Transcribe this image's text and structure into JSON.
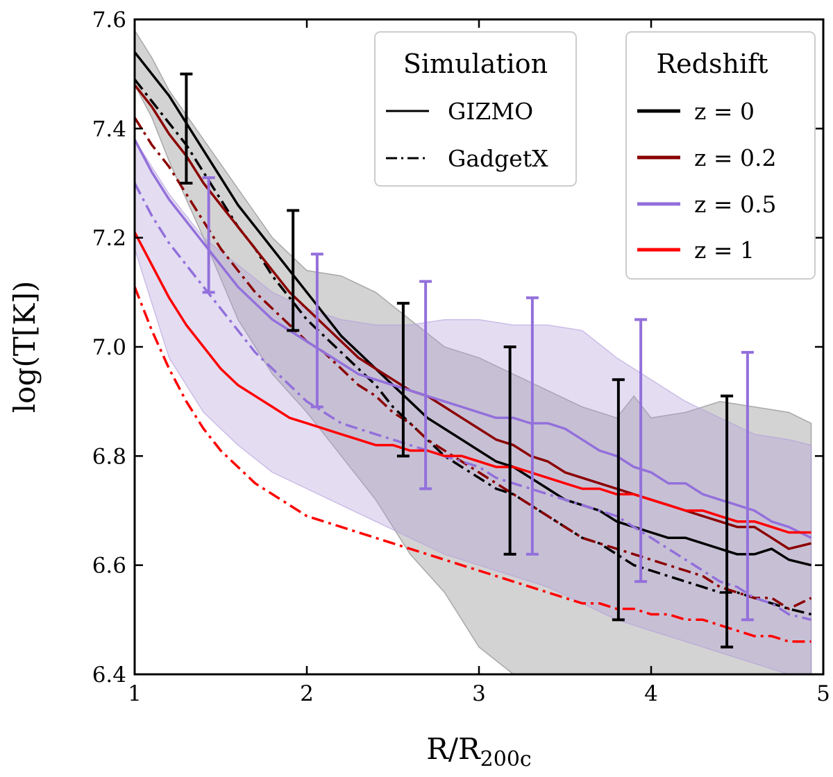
{
  "chart_data": {
    "type": "line",
    "title": "",
    "xlabel": "R/R",
    "xlabel_sub": "200c",
    "ylabel": "log(T[K])",
    "xlim": [
      1,
      5
    ],
    "ylim": [
      6.4,
      7.6
    ],
    "x_ticks": [
      1,
      2,
      3,
      4,
      5
    ],
    "x_tick_labels": [
      "1",
      "2",
      "3",
      "4",
      "5"
    ],
    "y_ticks": [
      6.4,
      6.6,
      6.8,
      7.0,
      7.2,
      7.4,
      7.6
    ],
    "y_tick_labels": [
      "6.4",
      "6.6",
      "6.8",
      "7.0",
      "7.2",
      "7.4",
      "7.6"
    ],
    "colors": {
      "z0": "#000000",
      "z02": "#8b0000",
      "z05": "#9370db",
      "z1": "#ff0000",
      "band_gray": "#808080",
      "band_purple": "#b39ddb"
    },
    "legend_simulation": {
      "title": "Simulation",
      "entries": [
        {
          "label": "GIZMO",
          "style": "solid"
        },
        {
          "label": "GadgetX",
          "style": "dashdot"
        }
      ]
    },
    "legend_redshift": {
      "title": "Redshift",
      "entries": [
        {
          "label": "z = 0",
          "color": "#000000"
        },
        {
          "label": "z = 0.2",
          "color": "#8b0000"
        },
        {
          "label": "z = 0.5",
          "color": "#9370db"
        },
        {
          "label": "z = 1",
          "color": "#ff0000"
        }
      ]
    },
    "bands": [
      {
        "name": "z0-scatter",
        "color": "#808080",
        "x": [
          1.0,
          1.1,
          1.2,
          1.4,
          1.6,
          1.8,
          2.0,
          2.2,
          2.4,
          2.6,
          2.8,
          3.0,
          3.2,
          3.4,
          3.6,
          3.8,
          3.9,
          4.0,
          4.2,
          4.4,
          4.6,
          4.8,
          4.93
        ],
        "upper": [
          7.58,
          7.53,
          7.47,
          7.38,
          7.29,
          7.2,
          7.14,
          7.13,
          7.1,
          7.05,
          7.0,
          6.98,
          6.95,
          6.92,
          6.89,
          6.87,
          6.91,
          6.87,
          6.88,
          6.9,
          6.89,
          6.88,
          6.86
        ],
        "lower": [
          7.48,
          7.42,
          7.34,
          7.2,
          7.05,
          6.95,
          6.88,
          6.8,
          6.72,
          6.62,
          6.55,
          6.45,
          6.4,
          6.4,
          6.4,
          6.4,
          6.4,
          6.4,
          6.4,
          6.4,
          6.4,
          6.4,
          6.4
        ]
      },
      {
        "name": "z05-scatter",
        "color": "#b39ddb",
        "x": [
          1.0,
          1.1,
          1.2,
          1.4,
          1.6,
          1.8,
          2.0,
          2.2,
          2.4,
          2.6,
          2.8,
          3.0,
          3.2,
          3.4,
          3.6,
          3.8,
          4.0,
          4.2,
          4.4,
          4.6,
          4.8,
          4.93
        ],
        "upper": [
          7.38,
          7.33,
          7.28,
          7.2,
          7.15,
          7.1,
          7.07,
          7.05,
          7.04,
          7.04,
          7.05,
          7.05,
          7.04,
          7.04,
          7.03,
          6.98,
          6.94,
          6.9,
          6.87,
          6.84,
          6.83,
          6.82
        ],
        "lower": [
          7.18,
          7.08,
          6.98,
          6.88,
          6.82,
          6.77,
          6.74,
          6.71,
          6.68,
          6.65,
          6.62,
          6.6,
          6.58,
          6.56,
          6.53,
          6.5,
          6.48,
          6.46,
          6.44,
          6.42,
          6.4,
          6.4
        ]
      }
    ],
    "series": [
      {
        "name": "GIZMO z=0",
        "color": "#000000",
        "style": "solid",
        "x": [
          1.0,
          1.1,
          1.2,
          1.3,
          1.4,
          1.5,
          1.6,
          1.7,
          1.8,
          1.9,
          2.0,
          2.1,
          2.2,
          2.3,
          2.4,
          2.5,
          2.6,
          2.7,
          2.8,
          2.9,
          3.0,
          3.1,
          3.2,
          3.3,
          3.4,
          3.5,
          3.6,
          3.7,
          3.8,
          3.9,
          4.0,
          4.1,
          4.2,
          4.3,
          4.4,
          4.5,
          4.6,
          4.7,
          4.8,
          4.93
        ],
        "y": [
          7.54,
          7.5,
          7.46,
          7.41,
          7.36,
          7.31,
          7.26,
          7.22,
          7.18,
          7.14,
          7.1,
          7.06,
          7.02,
          6.99,
          6.96,
          6.93,
          6.9,
          6.87,
          6.85,
          6.83,
          6.81,
          6.79,
          6.78,
          6.76,
          6.74,
          6.72,
          6.71,
          6.7,
          6.68,
          6.67,
          6.66,
          6.65,
          6.65,
          6.64,
          6.63,
          6.62,
          6.62,
          6.63,
          6.61,
          6.6
        ]
      },
      {
        "name": "GadgetX z=0",
        "color": "#000000",
        "style": "dashdot",
        "x": [
          1.0,
          1.1,
          1.2,
          1.3,
          1.4,
          1.5,
          1.6,
          1.7,
          1.8,
          1.9,
          2.0,
          2.1,
          2.2,
          2.3,
          2.4,
          2.5,
          2.6,
          2.7,
          2.8,
          2.9,
          3.0,
          3.1,
          3.2,
          3.3,
          3.4,
          3.5,
          3.6,
          3.7,
          3.8,
          3.9,
          4.0,
          4.1,
          4.2,
          4.3,
          4.4,
          4.5,
          4.6,
          4.7,
          4.8,
          4.93
        ],
        "y": [
          7.49,
          7.45,
          7.41,
          7.37,
          7.32,
          7.27,
          7.22,
          7.18,
          7.13,
          7.09,
          7.05,
          7.02,
          6.99,
          6.96,
          6.93,
          6.89,
          6.86,
          6.83,
          6.8,
          6.78,
          6.76,
          6.74,
          6.73,
          6.71,
          6.69,
          6.67,
          6.65,
          6.64,
          6.62,
          6.6,
          6.59,
          6.58,
          6.57,
          6.56,
          6.55,
          6.55,
          6.54,
          6.53,
          6.52,
          6.51
        ]
      },
      {
        "name": "GIZMO z=0.2",
        "color": "#8b0000",
        "style": "solid",
        "x": [
          1.0,
          1.1,
          1.2,
          1.3,
          1.4,
          1.5,
          1.6,
          1.7,
          1.8,
          1.9,
          2.0,
          2.1,
          2.2,
          2.3,
          2.4,
          2.5,
          2.6,
          2.7,
          2.8,
          2.9,
          3.0,
          3.1,
          3.2,
          3.3,
          3.4,
          3.5,
          3.6,
          3.7,
          3.8,
          3.9,
          4.0,
          4.1,
          4.2,
          4.3,
          4.4,
          4.5,
          4.6,
          4.7,
          4.8,
          4.93
        ],
        "y": [
          7.48,
          7.44,
          7.39,
          7.35,
          7.3,
          7.26,
          7.22,
          7.18,
          7.14,
          7.1,
          7.07,
          7.04,
          7.01,
          6.98,
          6.96,
          6.94,
          6.92,
          6.91,
          6.89,
          6.87,
          6.85,
          6.83,
          6.82,
          6.8,
          6.79,
          6.77,
          6.76,
          6.75,
          6.74,
          6.73,
          6.72,
          6.71,
          6.7,
          6.69,
          6.68,
          6.67,
          6.67,
          6.65,
          6.63,
          6.64
        ]
      },
      {
        "name": "GadgetX z=0.2",
        "color": "#8b0000",
        "style": "dashdot",
        "x": [
          1.0,
          1.1,
          1.2,
          1.3,
          1.4,
          1.5,
          1.6,
          1.7,
          1.8,
          1.9,
          2.0,
          2.1,
          2.2,
          2.3,
          2.4,
          2.5,
          2.6,
          2.7,
          2.8,
          2.9,
          3.0,
          3.1,
          3.2,
          3.3,
          3.4,
          3.5,
          3.6,
          3.7,
          3.8,
          3.9,
          4.0,
          4.1,
          4.2,
          4.3,
          4.4,
          4.5,
          4.6,
          4.7,
          4.8,
          4.93
        ],
        "y": [
          7.42,
          7.37,
          7.33,
          7.28,
          7.23,
          7.18,
          7.14,
          7.1,
          7.07,
          7.04,
          7.01,
          6.99,
          6.96,
          6.93,
          6.91,
          6.88,
          6.86,
          6.83,
          6.81,
          6.79,
          6.77,
          6.75,
          6.73,
          6.71,
          6.69,
          6.67,
          6.65,
          6.64,
          6.63,
          6.62,
          6.61,
          6.6,
          6.59,
          6.58,
          6.56,
          6.55,
          6.54,
          6.54,
          6.52,
          6.54
        ]
      },
      {
        "name": "GIZMO z=0.5",
        "color": "#9370db",
        "style": "solid",
        "x": [
          1.0,
          1.1,
          1.2,
          1.3,
          1.4,
          1.5,
          1.6,
          1.7,
          1.8,
          1.9,
          2.0,
          2.1,
          2.2,
          2.3,
          2.4,
          2.5,
          2.6,
          2.7,
          2.8,
          2.9,
          3.0,
          3.1,
          3.2,
          3.3,
          3.4,
          3.5,
          3.6,
          3.7,
          3.8,
          3.9,
          4.0,
          4.1,
          4.2,
          4.3,
          4.4,
          4.5,
          4.6,
          4.7,
          4.8,
          4.93
        ],
        "y": [
          7.38,
          7.32,
          7.27,
          7.23,
          7.19,
          7.15,
          7.11,
          7.08,
          7.05,
          7.03,
          7.01,
          6.99,
          6.97,
          6.95,
          6.94,
          6.93,
          6.92,
          6.91,
          6.9,
          6.89,
          6.88,
          6.87,
          6.87,
          6.86,
          6.86,
          6.85,
          6.83,
          6.81,
          6.8,
          6.78,
          6.77,
          6.75,
          6.75,
          6.73,
          6.72,
          6.71,
          6.7,
          6.68,
          6.67,
          6.65
        ]
      },
      {
        "name": "GadgetX z=0.5",
        "color": "#9370db",
        "style": "dashdot",
        "x": [
          1.0,
          1.1,
          1.2,
          1.3,
          1.4,
          1.5,
          1.6,
          1.7,
          1.8,
          1.9,
          2.0,
          2.1,
          2.2,
          2.3,
          2.4,
          2.5,
          2.6,
          2.7,
          2.8,
          2.9,
          3.0,
          3.1,
          3.2,
          3.3,
          3.4,
          3.5,
          3.6,
          3.7,
          3.8,
          3.9,
          4.0,
          4.1,
          4.2,
          4.3,
          4.4,
          4.5,
          4.6,
          4.7,
          4.8,
          4.93
        ],
        "y": [
          7.3,
          7.24,
          7.19,
          7.15,
          7.11,
          7.07,
          7.03,
          6.99,
          6.96,
          6.93,
          6.9,
          6.88,
          6.86,
          6.85,
          6.84,
          6.83,
          6.82,
          6.81,
          6.8,
          6.79,
          6.78,
          6.76,
          6.75,
          6.74,
          6.73,
          6.72,
          6.71,
          6.7,
          6.69,
          6.67,
          6.65,
          6.63,
          6.61,
          6.59,
          6.57,
          6.56,
          6.54,
          6.53,
          6.51,
          6.5
        ]
      },
      {
        "name": "GIZMO z=1",
        "color": "#ff0000",
        "style": "solid",
        "x": [
          1.0,
          1.1,
          1.2,
          1.3,
          1.4,
          1.5,
          1.6,
          1.7,
          1.8,
          1.9,
          2.0,
          2.1,
          2.2,
          2.3,
          2.4,
          2.5,
          2.6,
          2.7,
          2.8,
          2.9,
          3.0,
          3.1,
          3.2,
          3.3,
          3.4,
          3.5,
          3.6,
          3.7,
          3.8,
          3.9,
          4.0,
          4.1,
          4.2,
          4.3,
          4.4,
          4.5,
          4.6,
          4.7,
          4.8,
          4.93
        ],
        "y": [
          7.21,
          7.15,
          7.09,
          7.04,
          7.0,
          6.96,
          6.93,
          6.91,
          6.89,
          6.87,
          6.86,
          6.85,
          6.84,
          6.83,
          6.82,
          6.82,
          6.81,
          6.81,
          6.8,
          6.8,
          6.79,
          6.78,
          6.78,
          6.77,
          6.76,
          6.75,
          6.74,
          6.74,
          6.73,
          6.73,
          6.72,
          6.71,
          6.7,
          6.7,
          6.69,
          6.68,
          6.68,
          6.67,
          6.66,
          6.66
        ]
      },
      {
        "name": "GadgetX z=1",
        "color": "#ff0000",
        "style": "dashdot",
        "x": [
          1.0,
          1.1,
          1.2,
          1.3,
          1.4,
          1.5,
          1.6,
          1.7,
          1.8,
          1.9,
          2.0,
          2.1,
          2.2,
          2.3,
          2.4,
          2.5,
          2.6,
          2.7,
          2.8,
          2.9,
          3.0,
          3.1,
          3.2,
          3.3,
          3.4,
          3.5,
          3.6,
          3.7,
          3.8,
          3.9,
          4.0,
          4.1,
          4.2,
          4.3,
          4.4,
          4.5,
          4.6,
          4.7,
          4.8,
          4.93
        ],
        "y": [
          7.11,
          7.03,
          6.96,
          6.9,
          6.85,
          6.81,
          6.78,
          6.75,
          6.73,
          6.71,
          6.69,
          6.68,
          6.67,
          6.66,
          6.65,
          6.64,
          6.63,
          6.62,
          6.61,
          6.6,
          6.59,
          6.58,
          6.57,
          6.56,
          6.55,
          6.54,
          6.53,
          6.53,
          6.52,
          6.52,
          6.51,
          6.51,
          6.5,
          6.5,
          6.49,
          6.48,
          6.47,
          6.47,
          6.46,
          6.46
        ]
      }
    ],
    "error_bars": [
      {
        "x": 1.3,
        "y_low": 7.3,
        "y_high": 7.5,
        "color": "#000000"
      },
      {
        "x": 1.92,
        "y_low": 7.03,
        "y_high": 7.25,
        "color": "#000000"
      },
      {
        "x": 2.56,
        "y_low": 6.8,
        "y_high": 7.08,
        "color": "#000000"
      },
      {
        "x": 3.18,
        "y_low": 6.62,
        "y_high": 7.0,
        "color": "#000000"
      },
      {
        "x": 3.81,
        "y_low": 6.5,
        "y_high": 6.94,
        "color": "#000000"
      },
      {
        "x": 4.44,
        "y_low": 6.45,
        "y_high": 6.91,
        "color": "#000000"
      },
      {
        "x": 1.43,
        "y_low": 7.1,
        "y_high": 7.31,
        "color": "#9370db"
      },
      {
        "x": 2.06,
        "y_low": 6.89,
        "y_high": 7.17,
        "color": "#9370db"
      },
      {
        "x": 2.69,
        "y_low": 6.74,
        "y_high": 7.12,
        "color": "#9370db"
      },
      {
        "x": 3.31,
        "y_low": 6.62,
        "y_high": 7.09,
        "color": "#9370db"
      },
      {
        "x": 3.94,
        "y_low": 6.57,
        "y_high": 7.05,
        "color": "#9370db"
      },
      {
        "x": 4.56,
        "y_low": 6.5,
        "y_high": 6.99,
        "color": "#9370db"
      }
    ]
  }
}
